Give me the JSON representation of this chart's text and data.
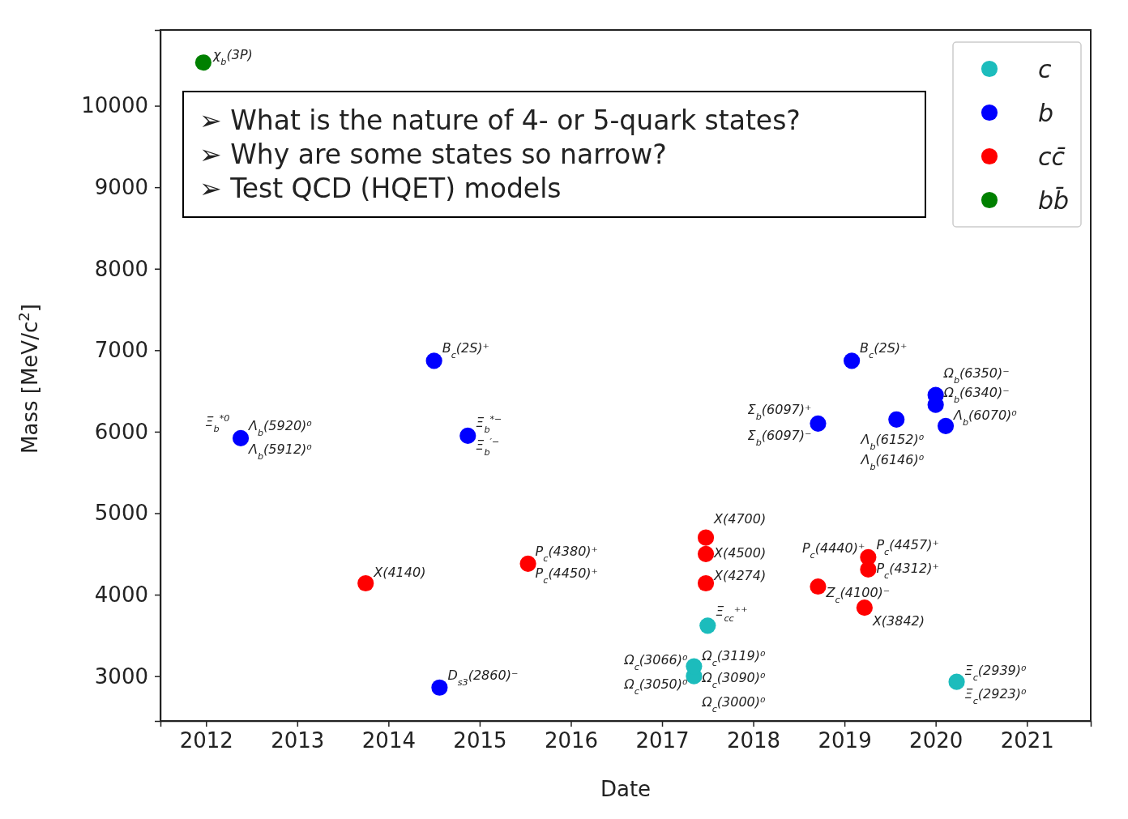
{
  "chart_data": {
    "type": "scatter",
    "xlabel": "Date",
    "ylabel": "Mass [MeV/c$^{2}$]",
    "xlim": [
      2011.5,
      2021.7
    ],
    "ylim": [
      2450,
      10930
    ],
    "xticks": [
      2012,
      2013,
      2014,
      2015,
      2016,
      2017,
      2018,
      2019,
      2020,
      2021
    ],
    "yticks": [
      3000,
      4000,
      5000,
      6000,
      7000,
      8000,
      9000,
      10000
    ],
    "grid": false,
    "legend": "top right",
    "marker": "circle",
    "series": [
      {
        "name": "c",
        "color": "#1cbcbc",
        "x": [
          2017.5,
          2017.35,
          2017.35,
          2020.23
        ],
        "values": [
          3620,
          3000,
          3120,
          2930
        ]
      },
      {
        "name": "b",
        "color": "#0000ff",
        "x": [
          2012.38,
          2014.5,
          2014.87,
          2014.56,
          2019.08,
          2018.71,
          2019.57,
          2020.0,
          2020.0,
          2020.11
        ],
        "values": [
          5920,
          6870,
          5950,
          2860,
          6870,
          6100,
          6150,
          6450,
          6330,
          6070
        ]
      },
      {
        "name": "cc̄",
        "color": "#ff0000",
        "x": [
          2013.75,
          2015.53,
          2017.48,
          2017.48,
          2017.48,
          2019.26,
          2019.26,
          2018.71,
          2019.22
        ],
        "values": [
          4140,
          4380,
          4700,
          4500,
          4140,
          4460,
          4310,
          4100,
          3840
        ]
      },
      {
        "name": "bb̄",
        "color": "#008000",
        "x": [
          2011.97
        ],
        "values": [
          10530
        ]
      }
    ],
    "annotations": [
      "➢ What is the nature of 4- or 5-quark states?",
      "➢ Why are some states so narrow?",
      "➢ Test QCD (HQET) models",
      {
        "text": "χ$_{b}$(3P)",
        "x": 2011.97,
        "y": 10525
      },
      {
        "text": "Ξ$_{b}$$^{*0}$",
        "x": 2012.33,
        "y": 5952
      },
      {
        "text": "Λ$_{b}$(5920)⁰",
        "x": 2012.38,
        "y": 5920
      },
      {
        "text": "Λ$_{b}$(5912)⁰",
        "x": 2012.38,
        "y": 5912
      },
      {
        "text": "B$_{c}$(2S)⁺",
        "x": 2014.5,
        "y": 6871
      },
      {
        "text": "Ξ$_{b}$$^{*−}$",
        "x": 2014.87,
        "y": 5955
      },
      {
        "text": "Ξ$_{b}$$^{′−}$",
        "x": 2014.87,
        "y": 5935
      },
      {
        "text": "D$_{s3}$(2860)⁻",
        "x": 2014.56,
        "y": 2860
      },
      {
        "text": "X(4140)",
        "x": 2013.75,
        "y": 4140
      },
      {
        "text": "P$_{c}$(4380)⁺",
        "x": 2015.53,
        "y": 4380
      },
      {
        "text": "P$_{c}$(4450)⁺",
        "x": 2015.53,
        "y": 4450
      },
      {
        "text": "X(4700)",
        "x": 2017.48,
        "y": 4700
      },
      {
        "text": "X(4500)",
        "x": 2017.48,
        "y": 4500
      },
      {
        "text": "X(4274)",
        "x": 2017.48,
        "y": 4140
      },
      {
        "text": "P$_{c}$(4440)⁺",
        "x": 2019.26,
        "y": 4440
      },
      {
        "text": "P$_{c}$(4457)⁺",
        "x": 2019.26,
        "y": 4457
      },
      {
        "text": "P$_{c}$(4312)⁺",
        "x": 2019.26,
        "y": 4312
      },
      {
        "text": "Z$_{c}$(4100)⁻",
        "x": 2018.71,
        "y": 4100
      },
      {
        "text": "X(3842)",
        "x": 2019.22,
        "y": 3842
      },
      {
        "text": "Ξ$_{cc}$⁺⁺",
        "x": 2017.5,
        "y": 3621
      },
      {
        "text": "Ω$_{c}$(3066)⁰",
        "x": 2017.35,
        "y": 3066
      },
      {
        "text": "Ω$_{c}$(3050)⁰",
        "x": 2017.35,
        "y": 3050
      },
      {
        "text": "Ω$_{c}$(3119)⁰",
        "x": 2017.35,
        "y": 3119
      },
      {
        "text": "Ω$_{c}$(3090)⁰",
        "x": 2017.35,
        "y": 3090
      },
      {
        "text": "Ω$_{c}$(3000)⁰",
        "x": 2017.35,
        "y": 3000
      },
      {
        "text": "Ξ$_{c}$(2939)⁰",
        "x": 2020.23,
        "y": 2939
      },
      {
        "text": "Ξ$_{c}$(2923)⁰",
        "x": 2020.23,
        "y": 2923
      },
      {
        "text": "B$_{c}$(2S)⁺",
        "x": 2019.08,
        "y": 6871
      },
      {
        "text": "Σ$_{b}$(6097)⁺",
        "x": 2018.71,
        "y": 6097
      },
      {
        "text": "Σ$_{b}$(6097)⁻",
        "x": 2018.71,
        "y": 6097
      },
      {
        "text": "Λ$_{b}$(6152)⁰",
        "x": 2019.57,
        "y": 6152
      },
      {
        "text": "Λ$_{b}$(6146)⁰",
        "x": 2019.57,
        "y": 6146
      },
      {
        "text": "Ω$_{b}$(6350)⁻",
        "x": 2020.0,
        "y": 6450
      },
      {
        "text": "Ω$_{b}$(6340)⁻",
        "x": 2020.0,
        "y": 6330
      },
      {
        "text": "Λ$_{b}$(6070)⁰",
        "x": 2020.11,
        "y": 6072
      }
    ]
  }
}
